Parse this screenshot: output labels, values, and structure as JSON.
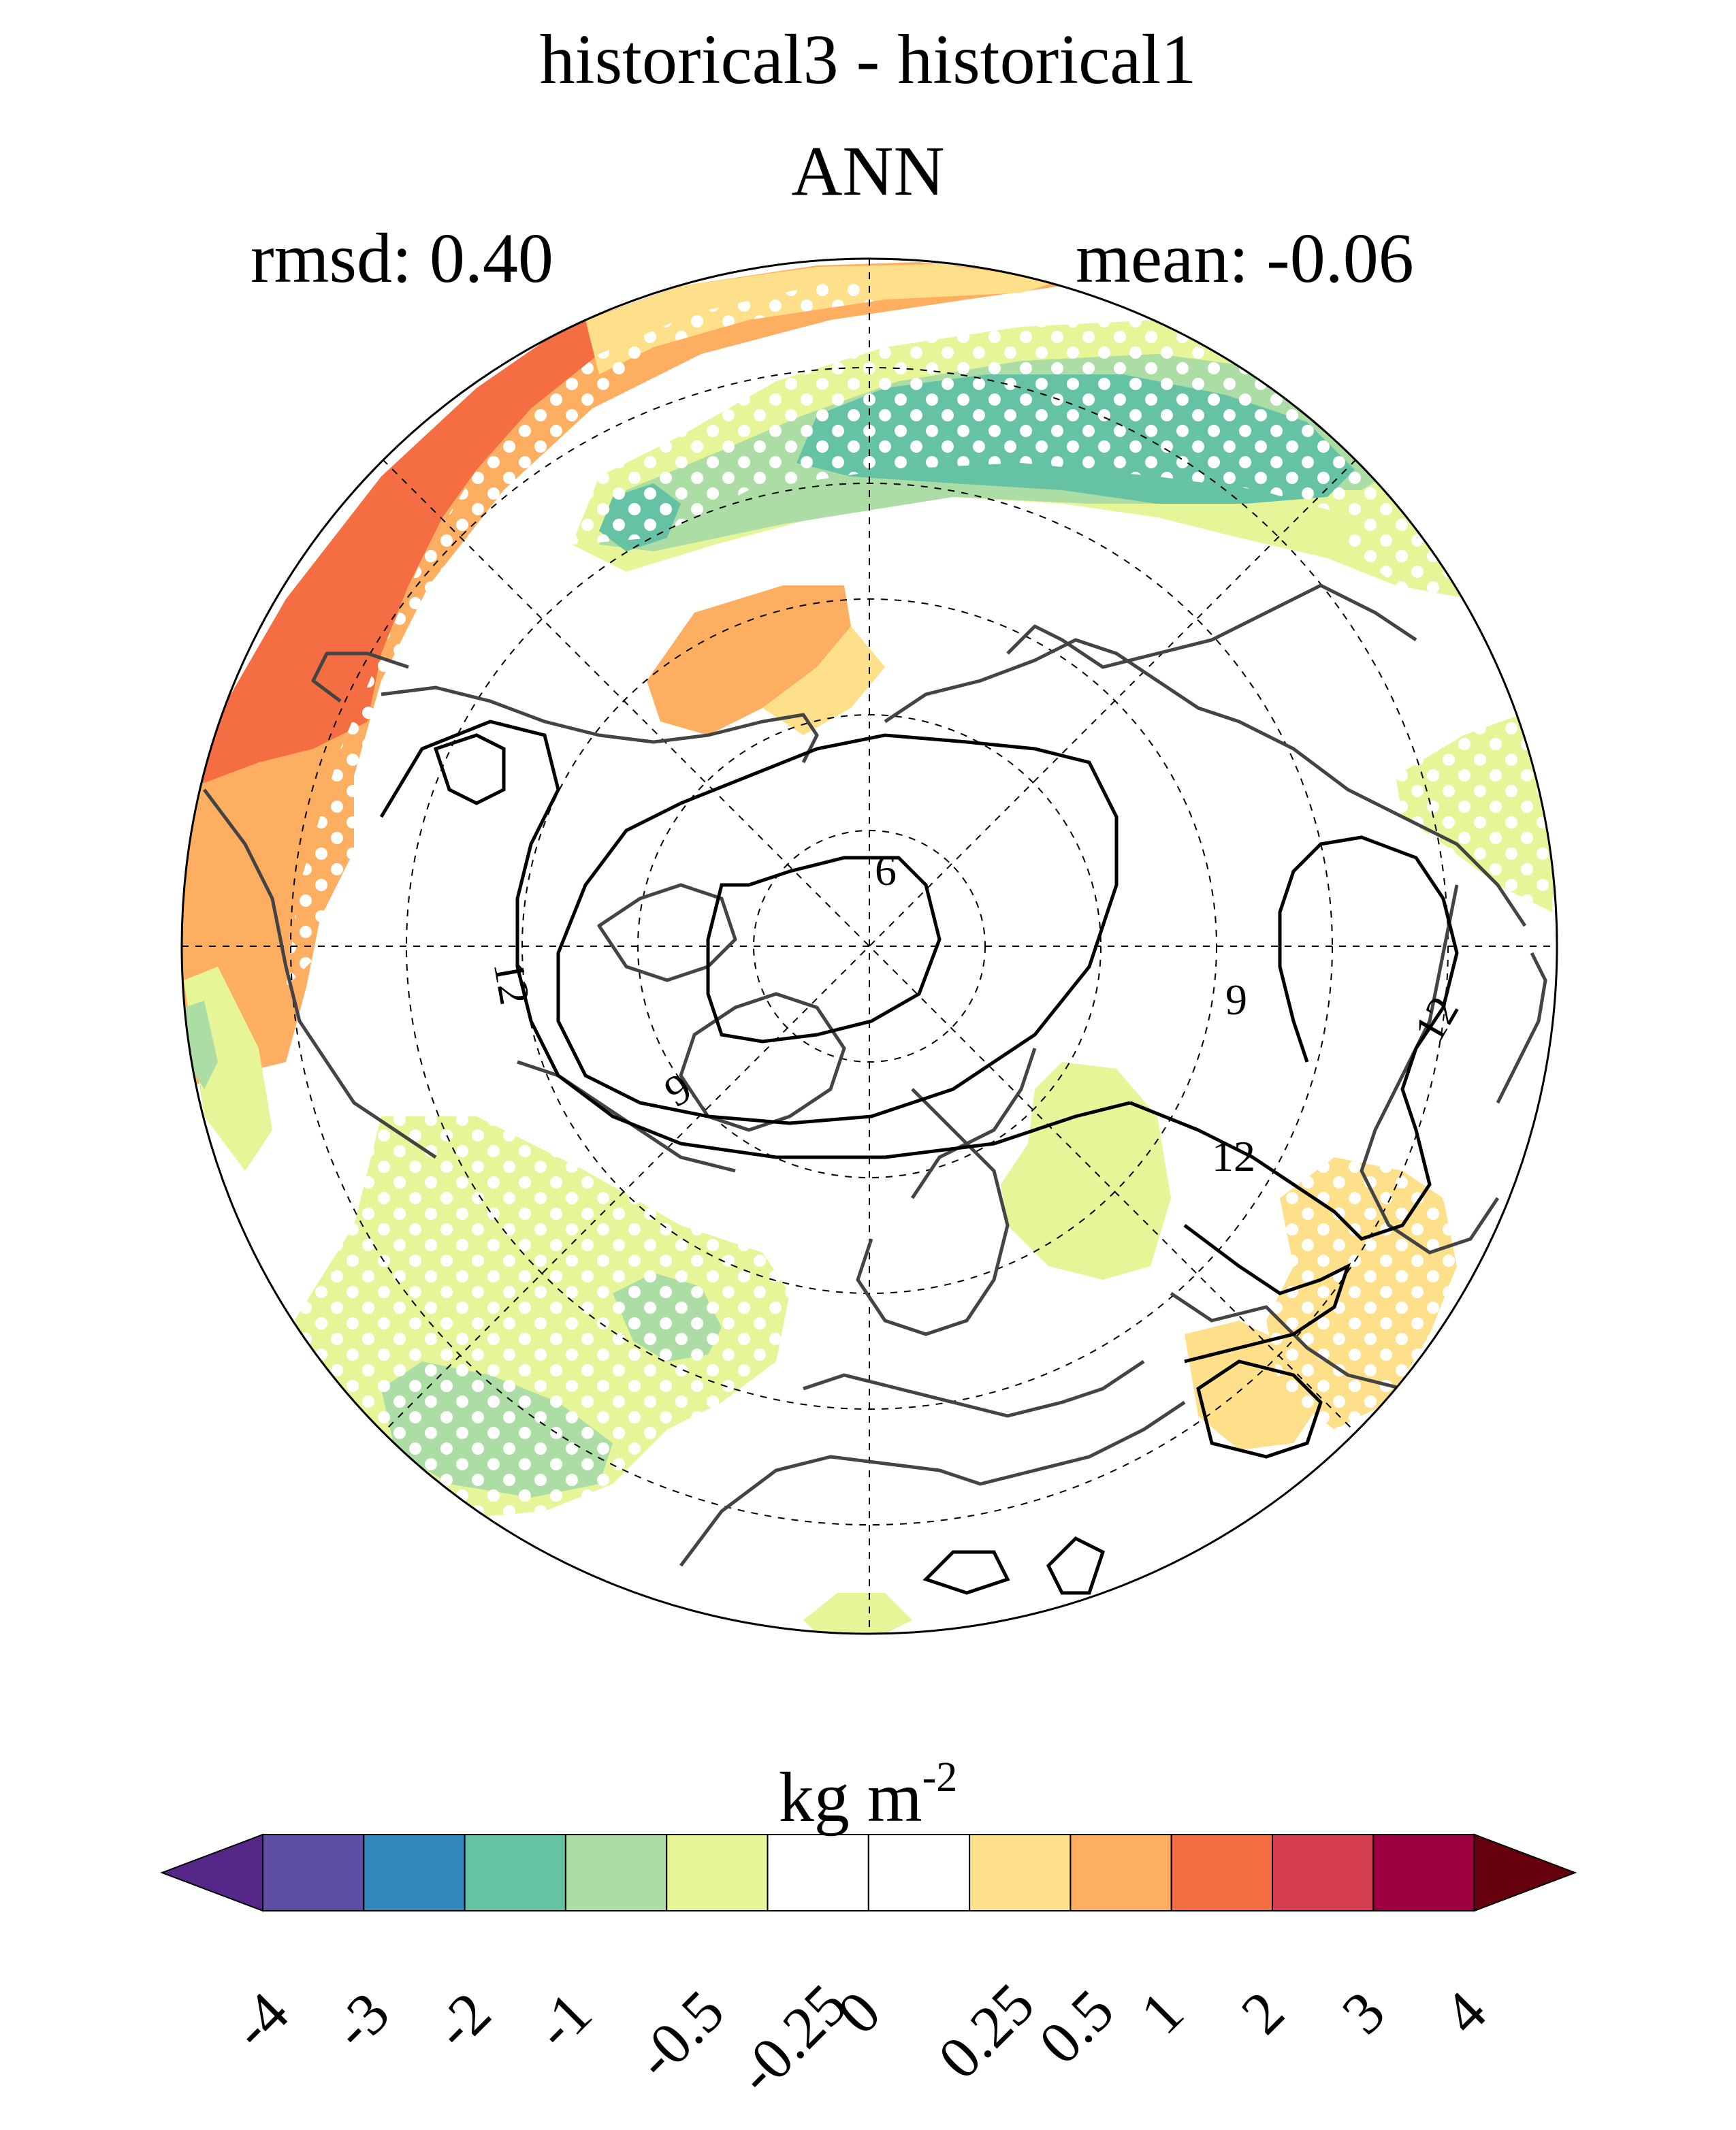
{
  "title": "historical3 - historical1",
  "subtitle": "ANN",
  "stats": {
    "rmsd": "rmsd: 0.40",
    "mean": "mean: -0.06"
  },
  "contour_labels": [
    "6",
    "9",
    "12",
    "12",
    "12",
    "9"
  ],
  "colorbar": {
    "units_base": "kg m",
    "units_exp": "-2",
    "levels": [
      "-4",
      "-3",
      "-2",
      "-1",
      "-0.5",
      "-0.25",
      "0",
      "0.25",
      "0.5",
      "1",
      "2",
      "3",
      "4"
    ],
    "colors": [
      "#5e4fa2",
      "#3288bd",
      "#66c2a5",
      "#abdda4",
      "#e6f598",
      "#ffffff",
      "#ffffff",
      "#fee08b",
      "#fdae61",
      "#f46d43",
      "#d53e4f",
      "#9e0142"
    ],
    "under_color": "#542788",
    "over_color": "#67000d"
  },
  "colors": {
    "orange_strong": "#f46d43",
    "orange": "#fdae61",
    "yellow": "#fee08b",
    "lightgreen": "#e6f598",
    "green": "#abdda4",
    "teal": "#66c2a5",
    "coast": "#444444"
  }
}
